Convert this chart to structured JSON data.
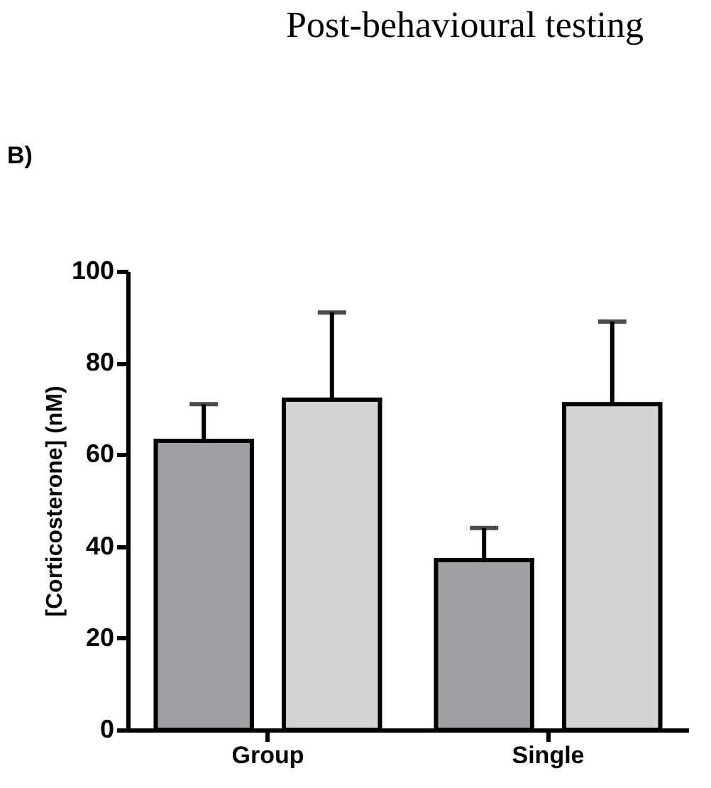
{
  "chart_data": {
    "type": "bar",
    "title": "Post-behavioural testing",
    "annotations": [
      "B)"
    ],
    "ylabel": "[Corticosterone] (nM)",
    "categories": [
      "Group",
      "Single"
    ],
    "series": [
      {
        "color": "#a0a0a4",
        "values": [
          63,
          37
        ],
        "errors": [
          [
            63,
            71
          ],
          [
            37,
            44
          ]
        ]
      },
      {
        "color": "#d4d4d4",
        "values": [
          72,
          71
        ],
        "errors": [
          [
            72,
            91
          ],
          [
            71,
            89
          ]
        ]
      }
    ],
    "ylim": [
      0,
      100
    ],
    "yticks": [
      0,
      20,
      40,
      60,
      80,
      100
    ],
    "grid": false
  }
}
